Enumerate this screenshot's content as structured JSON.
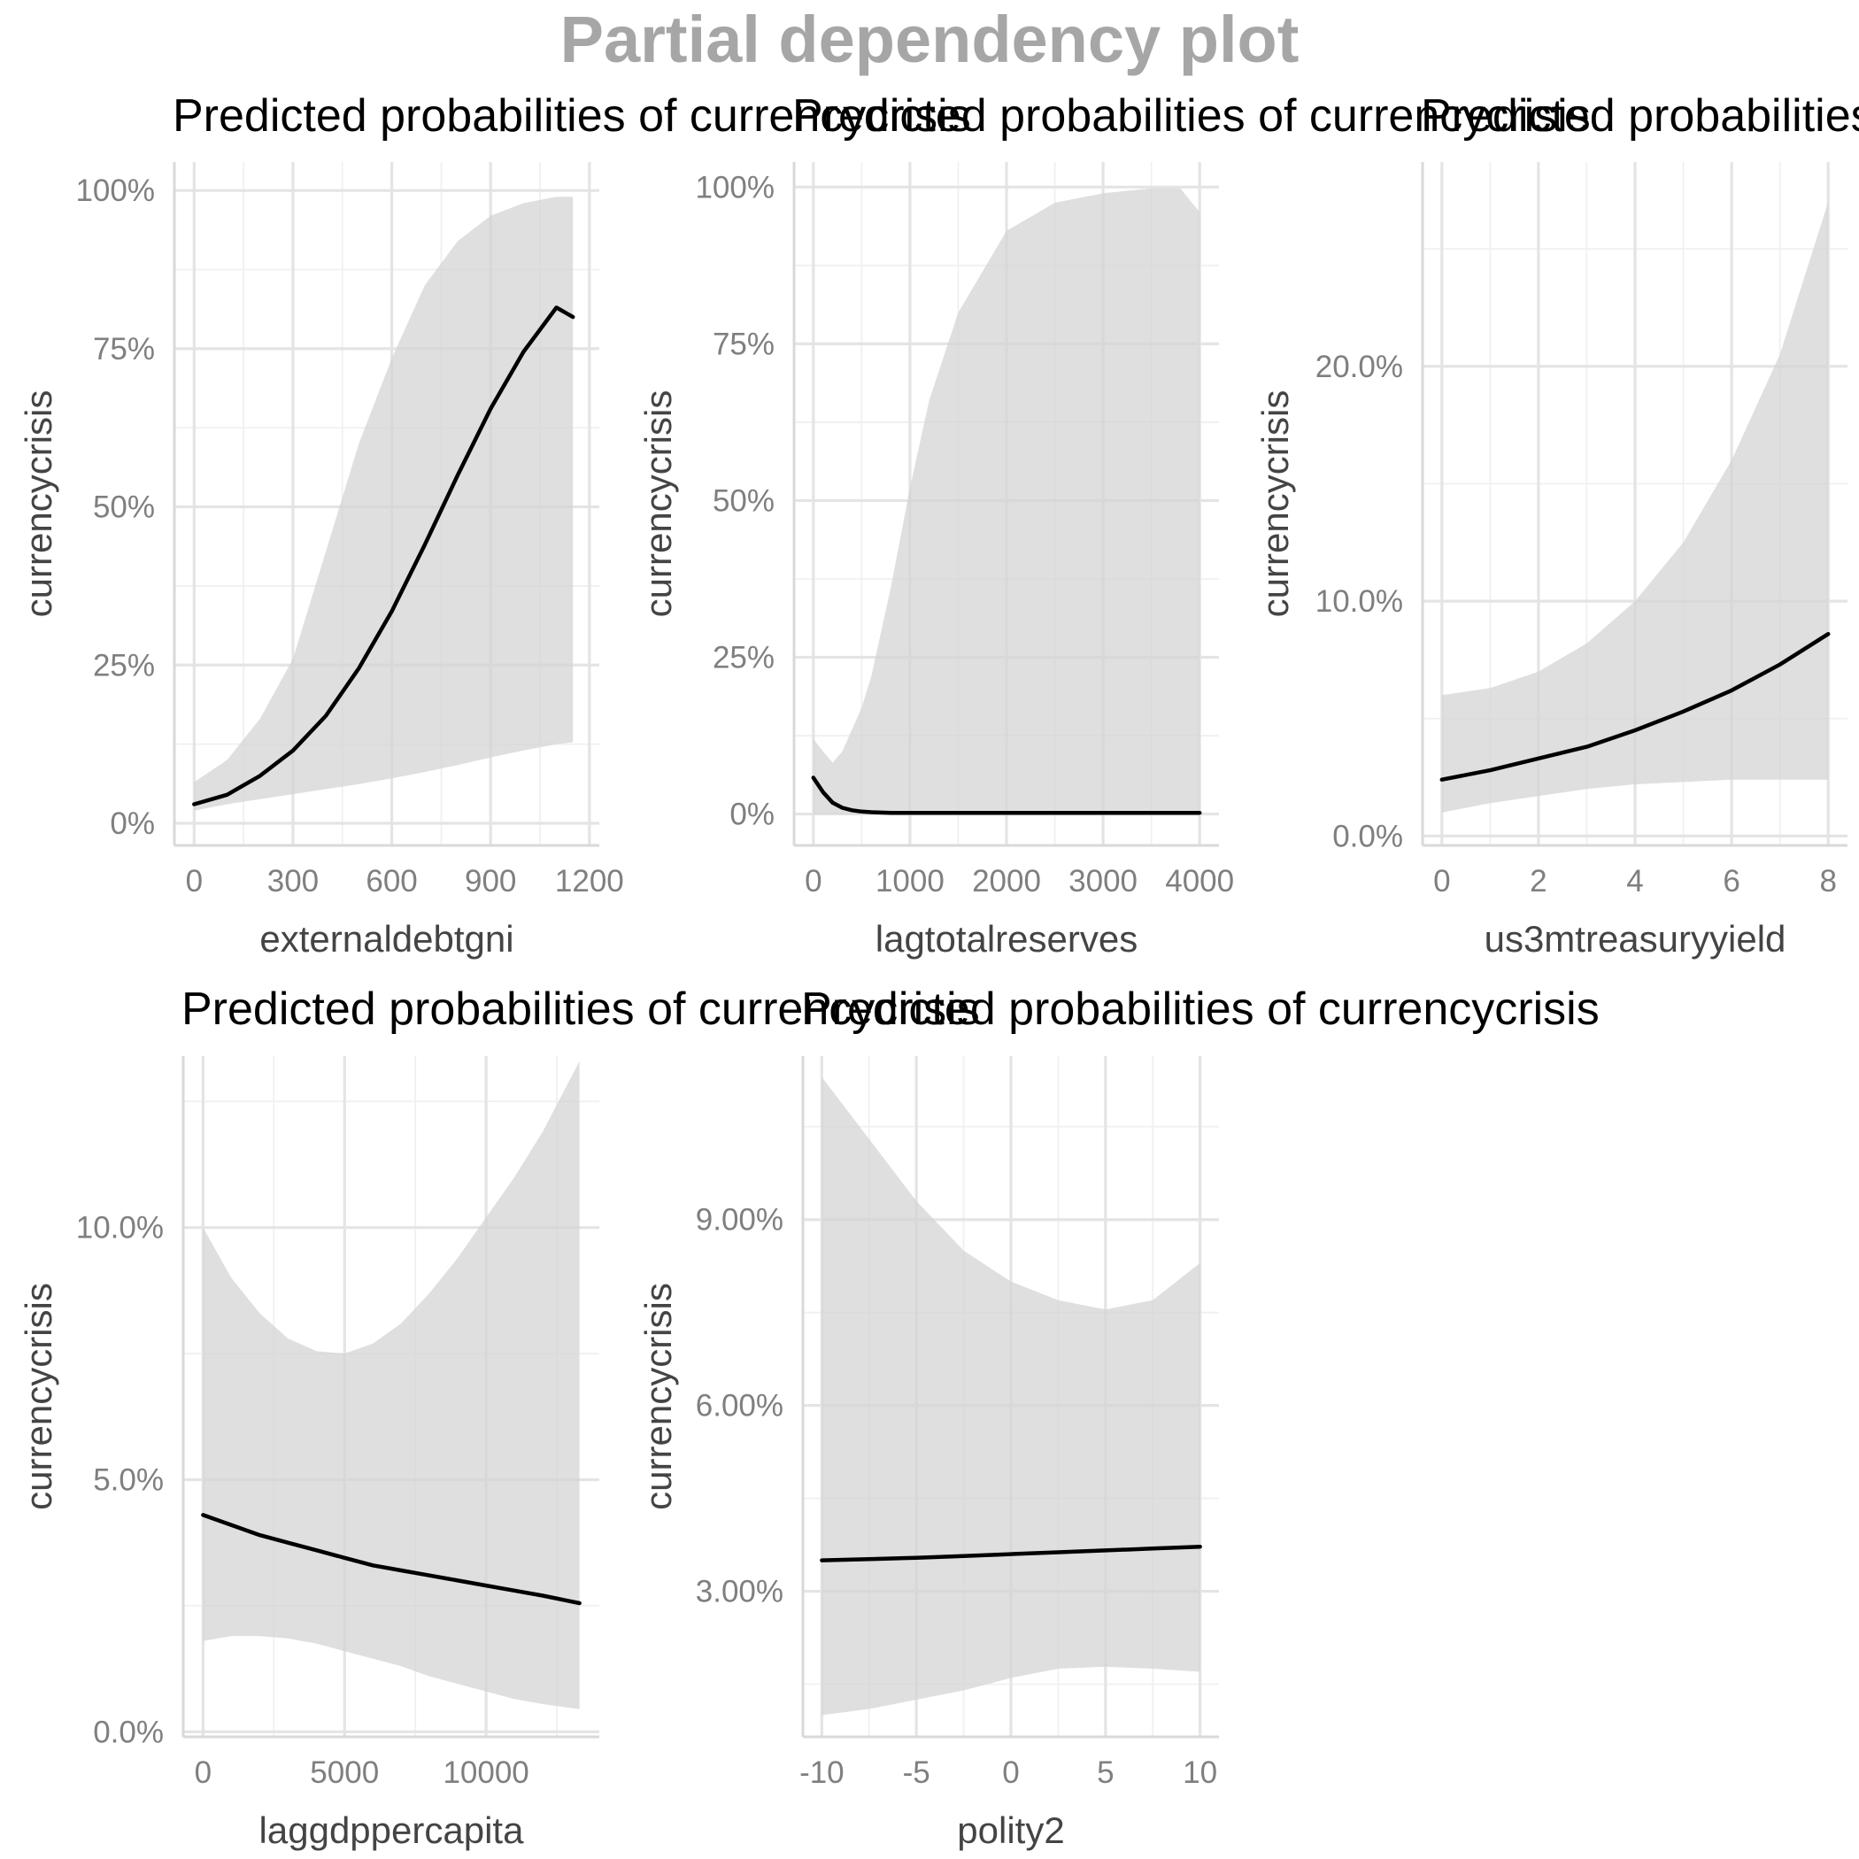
{
  "title": "Partial dependency plot",
  "colors": {
    "title": "#a6a6a6",
    "ribbon": "#d3d3d3",
    "line": "#000000",
    "grid": "#e4e4e4",
    "ticks": "#7f7f7f"
  },
  "chart_data": [
    {
      "type": "line",
      "title": "Predicted probabilities of currencycrisis",
      "xlabel": "externaldebtgni",
      "ylabel": "currencycrisis",
      "x_ticks": [
        0,
        300,
        600,
        900,
        1200
      ],
      "x_tick_labels": [
        "0",
        "300",
        "600",
        "900",
        "1200"
      ],
      "xlim": [
        -60,
        1230
      ],
      "y_ticks": [
        0,
        0.25,
        0.5,
        0.75,
        1.0
      ],
      "y_tick_labels": [
        "0%",
        "25%",
        "50%",
        "75%",
        "100%"
      ],
      "ylim": [
        -0.035,
        1.045
      ],
      "grid": true,
      "series": [
        {
          "x": [
            0,
            100,
            200,
            300,
            400,
            500,
            600,
            700,
            800,
            900,
            1000,
            1100,
            1150
          ],
          "y": [
            0.03,
            0.045,
            0.075,
            0.115,
            0.17,
            0.245,
            0.335,
            0.44,
            0.55,
            0.655,
            0.745,
            0.815,
            0.8
          ],
          "lower": [
            0.02,
            0.03,
            0.038,
            0.046,
            0.054,
            0.062,
            0.071,
            0.081,
            0.092,
            0.104,
            0.115,
            0.125,
            0.128
          ],
          "upper": [
            0.065,
            0.1,
            0.165,
            0.26,
            0.43,
            0.6,
            0.735,
            0.85,
            0.92,
            0.96,
            0.98,
            0.99,
            0.99
          ]
        }
      ]
    },
    {
      "type": "line",
      "title": "Predicted probabilities of currencycrisis",
      "xlabel": "lagtotalreserves",
      "ylabel": "currencycrisis",
      "x_ticks": [
        0,
        1000,
        2000,
        3000,
        4000
      ],
      "x_tick_labels": [
        "0",
        "1000",
        "2000",
        "3000",
        "4000"
      ],
      "xlim": [
        -200,
        4200
      ],
      "y_ticks": [
        0,
        0.25,
        0.5,
        0.75,
        1.0
      ],
      "y_tick_labels": [
        "0%",
        "25%",
        "50%",
        "75%",
        "100%"
      ],
      "ylim": [
        -0.05,
        1.04
      ],
      "grid": true,
      "series": [
        {
          "x": [
            0,
            100,
            200,
            300,
            400,
            500,
            600,
            800,
            1000,
            1200,
            1500,
            2000,
            2500,
            3000,
            3500,
            3800,
            4000
          ],
          "y": [
            0.058,
            0.035,
            0.018,
            0.01,
            0.006,
            0.004,
            0.003,
            0.002,
            0.002,
            0.002,
            0.002,
            0.002,
            0.002,
            0.002,
            0.002,
            0.002,
            0.002
          ],
          "lower": [
            0.0,
            0.0,
            0.0,
            0.0,
            0.0,
            0.0,
            0.0,
            0.0,
            0.0,
            0.0,
            0.0,
            0.0,
            0.0,
            0.0,
            0.0,
            0.0,
            0.0
          ],
          "upper": [
            0.12,
            0.1,
            0.082,
            0.1,
            0.135,
            0.17,
            0.22,
            0.36,
            0.52,
            0.66,
            0.8,
            0.93,
            0.975,
            0.99,
            0.998,
            0.998,
            0.96
          ]
        }
      ]
    },
    {
      "type": "line",
      "title": "Predicted probabilities of currencycrisis",
      "xlabel": "us3mtreasuryyield",
      "ylabel": "currencycrisis",
      "x_ticks": [
        0,
        2,
        4,
        6,
        8
      ],
      "x_tick_labels": [
        "0",
        "2",
        "4",
        "6",
        "8"
      ],
      "xlim": [
        -0.4,
        8.4
      ],
      "y_ticks": [
        0,
        0.1,
        0.2
      ],
      "y_tick_labels": [
        "0.0%",
        "10.0%",
        "20.0%"
      ],
      "ylim": [
        -0.004,
        0.287
      ],
      "grid": true,
      "series": [
        {
          "x": [
            0,
            1,
            2,
            3,
            4,
            5,
            6,
            7,
            8
          ],
          "y": [
            0.024,
            0.028,
            0.033,
            0.038,
            0.045,
            0.053,
            0.062,
            0.073,
            0.086
          ],
          "lower": [
            0.01,
            0.014,
            0.017,
            0.02,
            0.022,
            0.023,
            0.024,
            0.024,
            0.024
          ],
          "upper": [
            0.06,
            0.063,
            0.07,
            0.082,
            0.1,
            0.125,
            0.16,
            0.205,
            0.27
          ]
        }
      ]
    },
    {
      "type": "line",
      "title": "Predicted probabilities of currencycrisis",
      "xlabel": "laggdppercapita",
      "ylabel": "currencycrisis",
      "x_ticks": [
        0,
        5000,
        10000
      ],
      "x_tick_labels": [
        "0",
        "5000",
        "10000"
      ],
      "xlim": [
        -700,
        14000
      ],
      "y_ticks": [
        0,
        0.05,
        0.1
      ],
      "y_tick_labels": [
        "0.0%",
        "5.0%",
        "10.0%"
      ],
      "ylim": [
        -0.001,
        0.134
      ],
      "grid": true,
      "series": [
        {
          "x": [
            0,
            1000,
            2000,
            3000,
            4000,
            5000,
            6000,
            7000,
            8000,
            9000,
            10000,
            11000,
            12000,
            13300
          ],
          "y": [
            0.043,
            0.041,
            0.039,
            0.0375,
            0.036,
            0.0345,
            0.033,
            0.032,
            0.031,
            0.03,
            0.029,
            0.028,
            0.027,
            0.0255
          ],
          "lower": [
            0.018,
            0.019,
            0.019,
            0.0185,
            0.0175,
            0.016,
            0.0145,
            0.013,
            0.011,
            0.0095,
            0.008,
            0.0065,
            0.0055,
            0.0045
          ],
          "upper": [
            0.1,
            0.09,
            0.083,
            0.078,
            0.0755,
            0.075,
            0.077,
            0.081,
            0.087,
            0.094,
            0.102,
            0.11,
            0.119,
            0.133
          ]
        }
      ]
    },
    {
      "type": "line",
      "title": "Predicted probabilities of currencycrisis",
      "xlabel": "polity2",
      "ylabel": "currencycrisis",
      "x_ticks": [
        -10,
        -5,
        0,
        5,
        10
      ],
      "x_tick_labels": [
        "-10",
        "-5",
        "0",
        "5",
        "10"
      ],
      "xlim": [
        -11,
        11
      ],
      "y_ticks": [
        0.03,
        0.06,
        0.09
      ],
      "y_tick_labels": [
        "3.00%",
        "6.00%",
        "9.00%"
      ],
      "ylim": [
        0.0065,
        0.1164
      ],
      "grid": true,
      "series": [
        {
          "x": [
            -10,
            -7.5,
            -5,
            -2.5,
            0,
            2.5,
            5,
            7.5,
            10
          ],
          "y": [
            0.035,
            0.0352,
            0.0354,
            0.0357,
            0.036,
            0.0363,
            0.0366,
            0.0369,
            0.0372
          ],
          "lower": [
            0.01,
            0.011,
            0.0125,
            0.014,
            0.016,
            0.0175,
            0.0178,
            0.0175,
            0.017
          ],
          "upper": [
            0.113,
            0.103,
            0.093,
            0.085,
            0.08,
            0.077,
            0.0755,
            0.077,
            0.083
          ]
        }
      ]
    }
  ]
}
